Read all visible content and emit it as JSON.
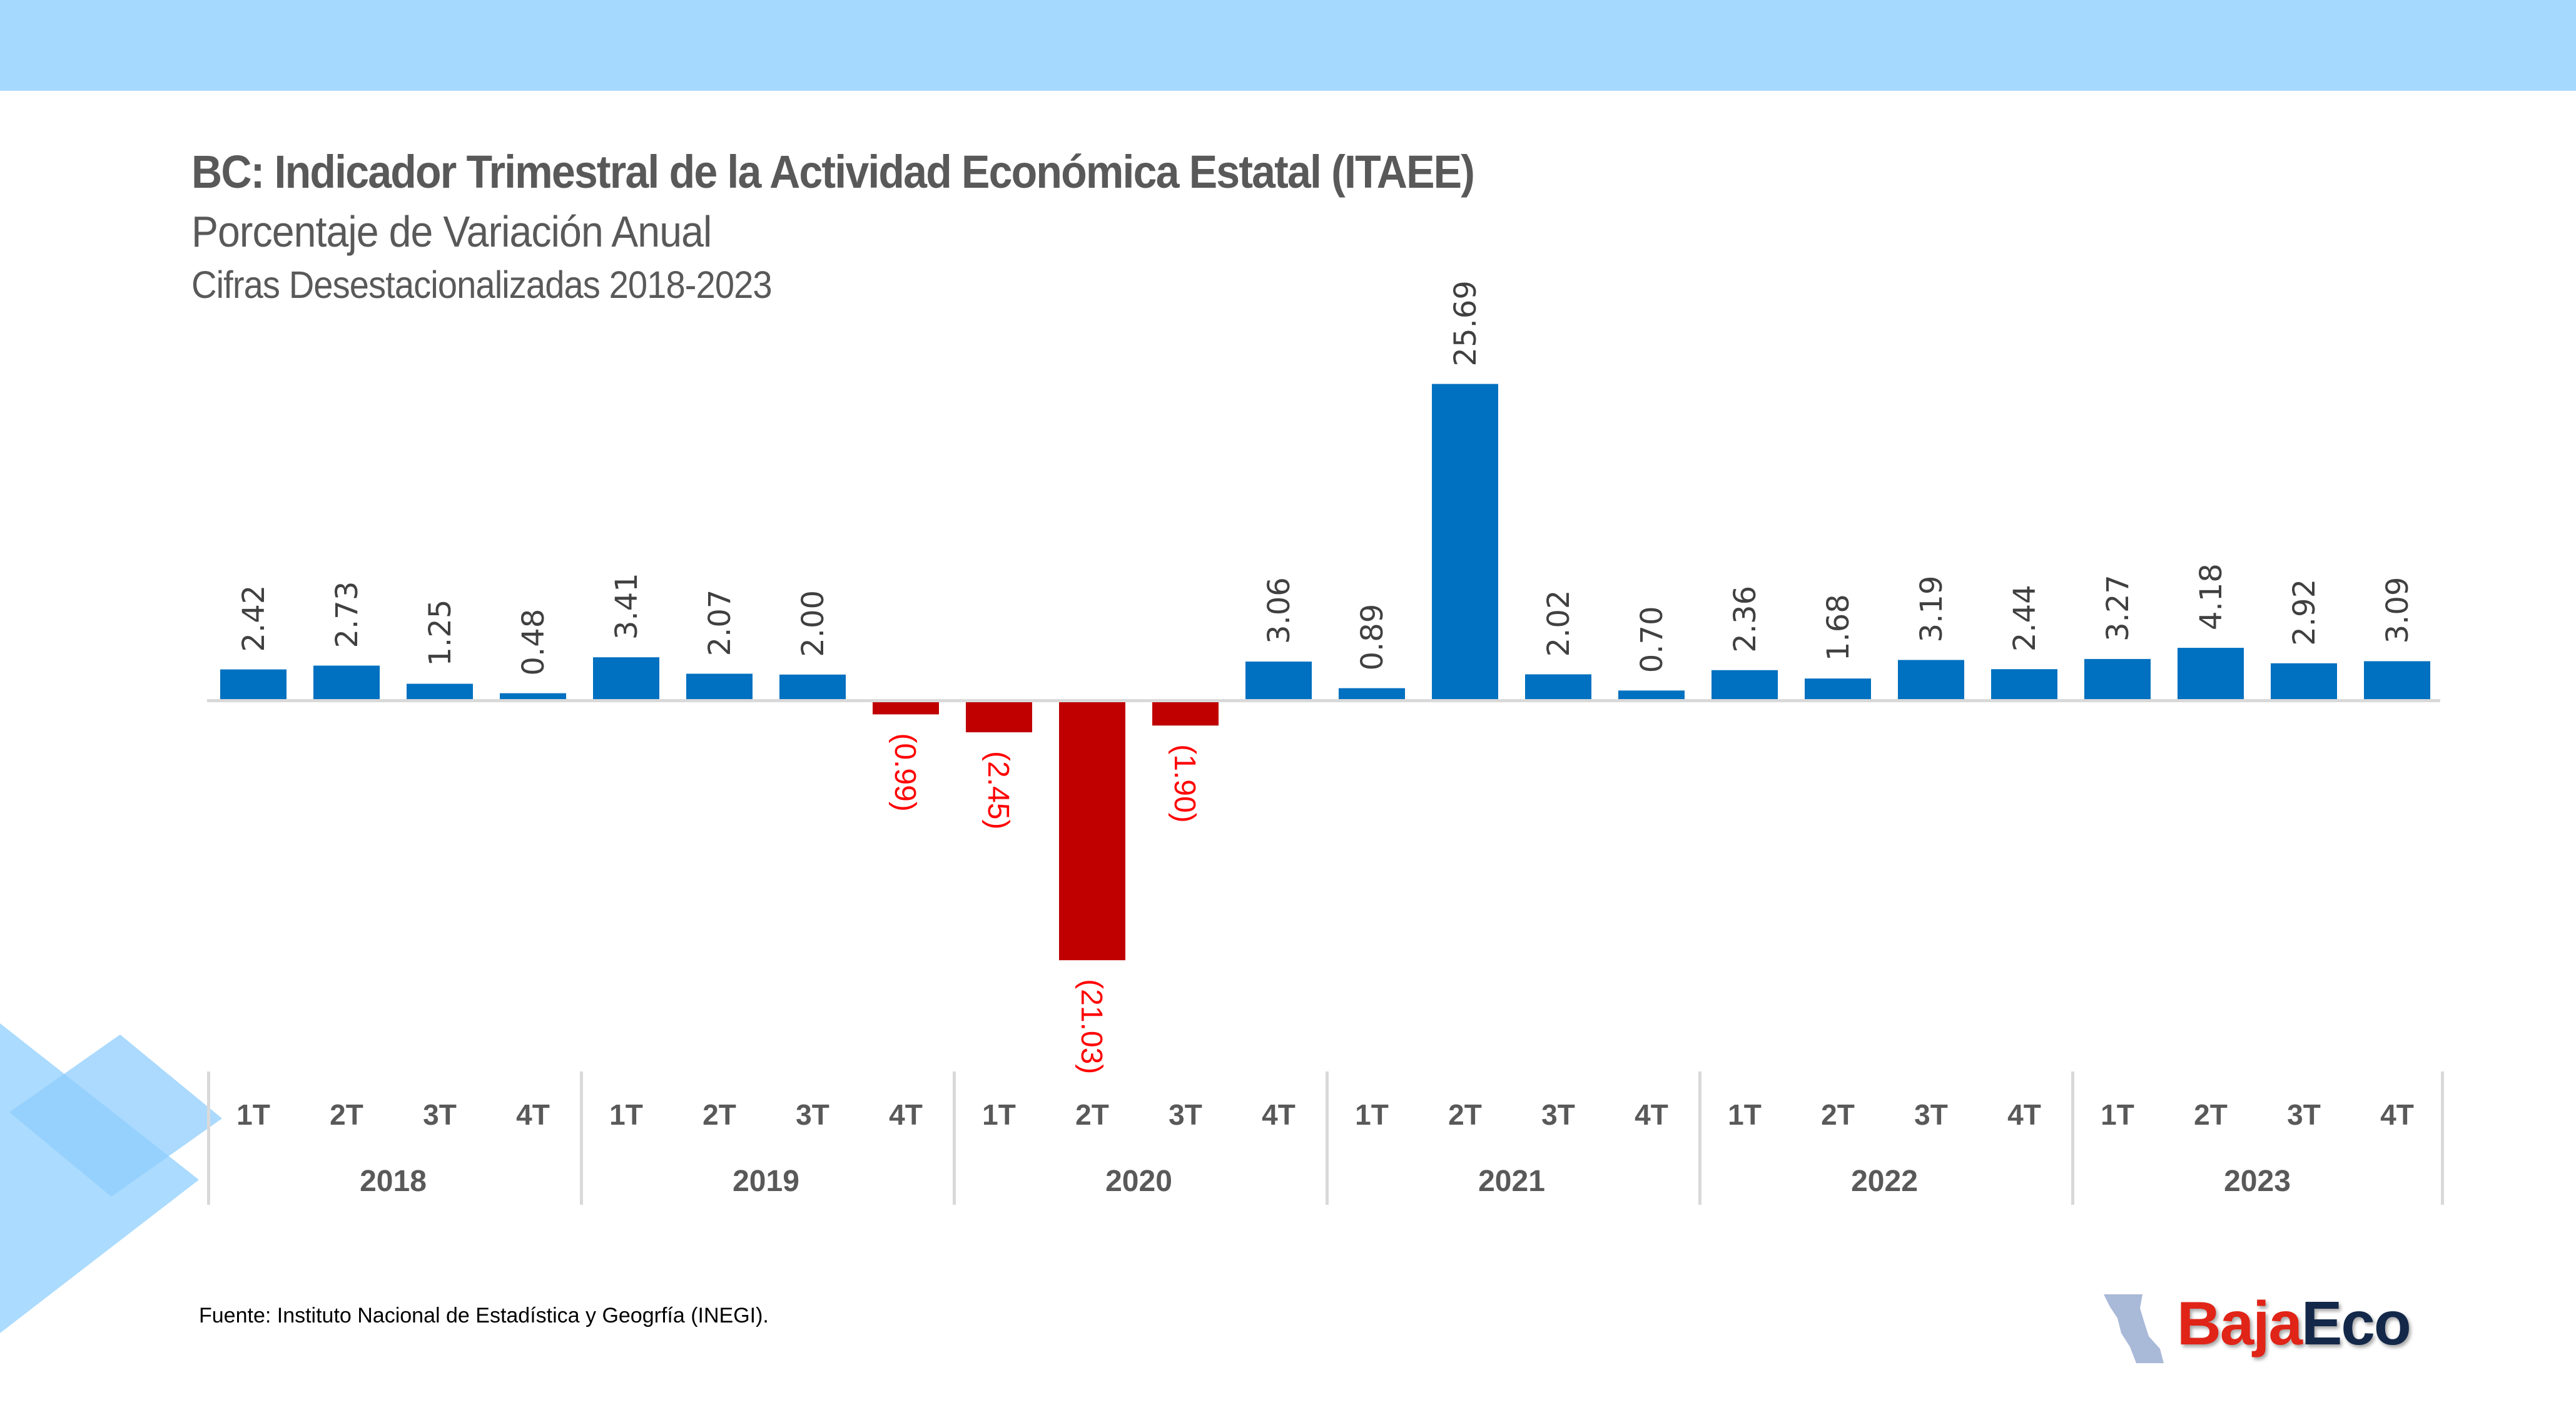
{
  "header": {
    "title": "BC: Indicador Trimestral de la Actividad Económica Estatal (ITAEE)",
    "subtitle": "Porcentaje de Variación Anual",
    "subtitle2": "Cifras Desestacionalizadas 2018-2023"
  },
  "footer": {
    "source": "Fuente: Instituto Nacional de Estadística y Geogrfía (INEGI).",
    "logo_part1": "Baja",
    "logo_part2": "Eco"
  },
  "colors": {
    "band": "#a6d9fe",
    "positive": "#0070c0",
    "negative": "#c00000",
    "positive_label": "#404040",
    "negative_label": "#ff0000",
    "axis": "#d9d9d9",
    "axis_text": "#595959"
  },
  "chart_data": {
    "type": "bar",
    "title": "BC: Indicador Trimestral de la Actividad Económica Estatal (ITAEE)",
    "subtitle": "Porcentaje de Variación Anual — Cifras Desestacionalizadas 2018-2023",
    "xlabel": "",
    "ylabel": "",
    "grid": false,
    "legend": "none",
    "ylim": [
      -21.03,
      25.69
    ],
    "groups": [
      "2018",
      "2019",
      "2020",
      "2021",
      "2022",
      "2023"
    ],
    "quarters": [
      "1T",
      "2T",
      "3T",
      "4T"
    ],
    "categories": [
      "2018 1T",
      "2018 2T",
      "2018 3T",
      "2018 4T",
      "2019 1T",
      "2019 2T",
      "2019 3T",
      "2019 4T",
      "2020 1T",
      "2020 2T",
      "2020 3T",
      "2020 4T",
      "2021 1T",
      "2021 2T",
      "2021 3T",
      "2021 4T",
      "2022 1T",
      "2022 2T",
      "2022 3T",
      "2022 4T",
      "2023 1T",
      "2023 2T",
      "2023 3T",
      "2023 4T"
    ],
    "values": [
      2.42,
      2.73,
      1.25,
      0.48,
      3.41,
      2.07,
      2.0,
      -0.99,
      -2.45,
      -21.03,
      -1.9,
      3.06,
      0.89,
      25.69,
      2.02,
      0.7,
      2.36,
      1.68,
      3.19,
      2.44,
      3.27,
      4.18,
      2.92,
      3.09
    ],
    "labels": [
      "2.42",
      "2.73",
      "1.25",
      "0.48",
      "3.41",
      "2.07",
      "2.00",
      "(0.99)",
      "(2.45)",
      "(21.03)",
      "(1.90)",
      "3.06",
      "0.89",
      "25.69",
      "2.02",
      "0.70",
      "2.36",
      "1.68",
      "3.19",
      "2.44",
      "3.27",
      "4.18",
      "2.92",
      "3.09"
    ]
  }
}
